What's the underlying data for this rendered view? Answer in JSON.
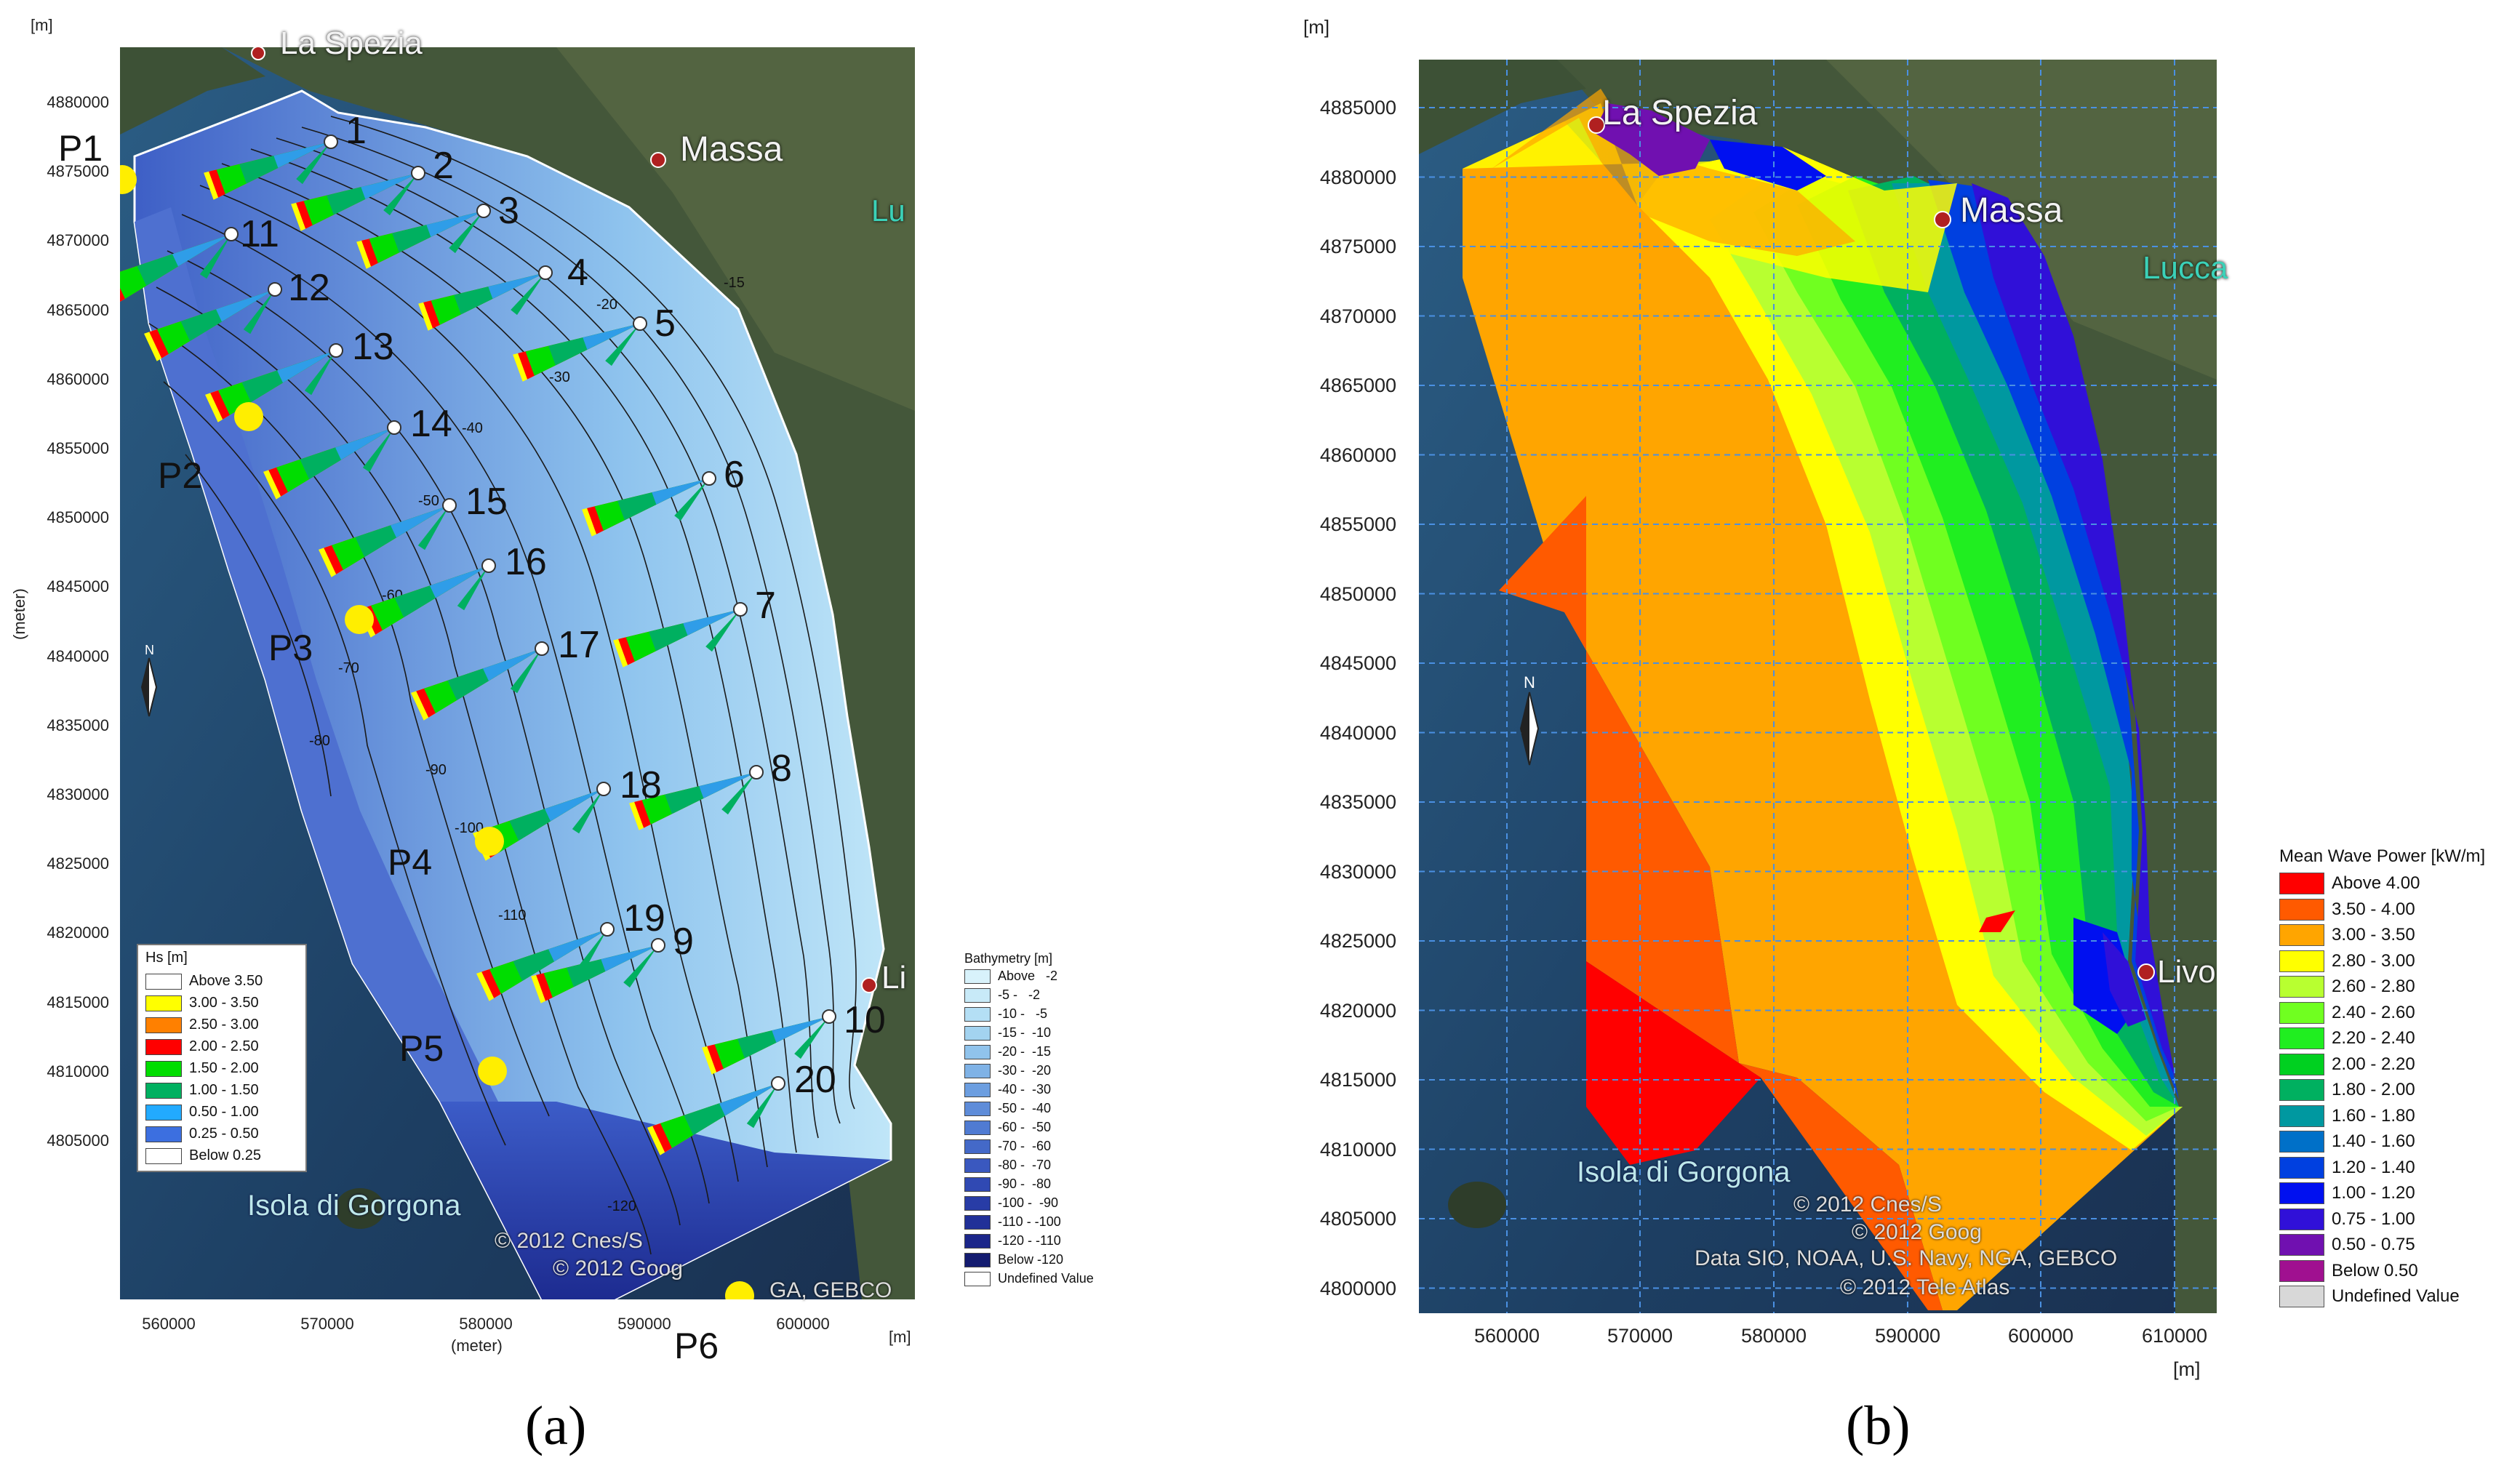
{
  "panel_a": {
    "unit_top": "[m]",
    "unit_right": "[m]",
    "ylabel": "(meter)",
    "xlabel": "(meter)",
    "yticks": [
      "4880000",
      "4875000",
      "4870000",
      "4865000",
      "4860000",
      "4855000",
      "4850000",
      "4845000",
      "4840000",
      "4835000",
      "4830000",
      "4825000",
      "4820000",
      "4815000",
      "4810000",
      "4805000"
    ],
    "xticks": [
      "560000",
      "570000",
      "580000",
      "590000",
      "600000"
    ],
    "cities": {
      "spezia": "La Spezia",
      "massa": "Massa",
      "lucca": "Lu",
      "livorno": "Li"
    },
    "gorgona": "Isola di Gorgona",
    "copyright1": "© 2012 Cnes/S",
    "copyright2": "© 2012 Goog",
    "copyright3": "GA, GEBCO",
    "point_labels": [
      "1",
      "2",
      "3",
      "4",
      "5",
      "6",
      "7",
      "8",
      "9",
      "10",
      "11",
      "12",
      "13",
      "14",
      "15",
      "16",
      "17",
      "18",
      "19",
      "20"
    ],
    "p_labels": [
      "P1",
      "P2",
      "P3",
      "P4",
      "P5",
      "P6"
    ],
    "hs_legend": {
      "title": "Hs [m]",
      "items": [
        {
          "label": "Above 3.50",
          "color": "#ffffff"
        },
        {
          "label": "3.00 - 3.50",
          "color": "#ffff00"
        },
        {
          "label": "2.50 - 3.00",
          "color": "#ff8000"
        },
        {
          "label": "2.00 - 2.50",
          "color": "#ff0000"
        },
        {
          "label": "1.50 - 2.00",
          "color": "#00dd00"
        },
        {
          "label": "1.00 - 1.50",
          "color": "#00b060"
        },
        {
          "label": "0.50 - 1.00",
          "color": "#22aaff"
        },
        {
          "label": "0.25 - 0.50",
          "color": "#3c6fe0"
        },
        {
          "label": "Below 0.25",
          "color": "#ffffff"
        }
      ]
    },
    "bathy_legend": {
      "title": "Bathymetry [m]",
      "items": [
        {
          "label": "Above   -2",
          "color": "#d8f2fb"
        },
        {
          "label": "-5 -   -2",
          "color": "#c8eaf8"
        },
        {
          "label": "-10 -   -5",
          "color": "#b4dff5"
        },
        {
          "label": "-15 -  -10",
          "color": "#a3d3f0"
        },
        {
          "label": "-20 -  -15",
          "color": "#90c3ec"
        },
        {
          "label": "-30 -  -20",
          "color": "#7fb2e6"
        },
        {
          "label": "-40 -  -30",
          "color": "#6c9ee0"
        },
        {
          "label": "-50 -  -40",
          "color": "#5e8cd9"
        },
        {
          "label": "-60 -  -50",
          "color": "#507bd2"
        },
        {
          "label": "-70 -  -60",
          "color": "#4469c8"
        },
        {
          "label": "-80 -  -70",
          "color": "#3a58bf"
        },
        {
          "label": "-90 -  -80",
          "color": "#3049b3"
        },
        {
          "label": "-100 -  -90",
          "color": "#283ca6"
        },
        {
          "label": "-110 - -100",
          "color": "#213098"
        },
        {
          "label": "-120 - -110",
          "color": "#1b268a"
        },
        {
          "label": "Below -120",
          "color": "#141c70"
        },
        {
          "label": "Undefined Value",
          "color": "#ffffff"
        }
      ]
    },
    "contours": [
      "-15",
      "-20",
      "-30",
      "-40",
      "-50",
      "-60",
      "-70",
      "-80",
      "-90",
      "-100",
      "-110",
      "-120"
    ]
  },
  "panel_b": {
    "unit_top": "[m]",
    "unit_bottom": "[m]",
    "yticks": [
      "4885000",
      "4880000",
      "4875000",
      "4870000",
      "4865000",
      "4860000",
      "4855000",
      "4850000",
      "4845000",
      "4840000",
      "4835000",
      "4830000",
      "4825000",
      "4820000",
      "4815000",
      "4810000",
      "4805000",
      "4800000"
    ],
    "xticks": [
      "560000",
      "570000",
      "580000",
      "590000",
      "600000",
      "610000"
    ],
    "cities": {
      "spezia": "La Spezia",
      "massa": "Massa",
      "lucca": "Lucca",
      "livorno": "Livo"
    },
    "gorgona": "Isola di Gorgona",
    "copyright1": "© 2012 Cnes/S",
    "copyright2": "© 2012 Goog",
    "copyright3": "Data SIO, NOAA, U.S. Navy, NGA, GEBCO",
    "copyright4": "© 2012 Tele Atlas",
    "legend": {
      "title": "Mean Wave Power [kW/m]",
      "items": [
        {
          "label": "Above 4.00",
          "color": "#ff0000"
        },
        {
          "label": "3.50 - 4.00",
          "color": "#ff5a00"
        },
        {
          "label": "3.00 - 3.50",
          "color": "#ffa500"
        },
        {
          "label": "2.80 - 3.00",
          "color": "#ffff00"
        },
        {
          "label": "2.60 - 2.80",
          "color": "#b8ff30"
        },
        {
          "label": "2.40 - 2.60",
          "color": "#70ff20"
        },
        {
          "label": "2.20 - 2.40",
          "color": "#20ee20"
        },
        {
          "label": "2.00 - 2.20",
          "color": "#00d020"
        },
        {
          "label": "1.80 - 2.00",
          "color": "#00b060"
        },
        {
          "label": "1.60 - 1.80",
          "color": "#0098a0"
        },
        {
          "label": "1.40 - 1.60",
          "color": "#0070c8"
        },
        {
          "label": "1.20 - 1.40",
          "color": "#0040e0"
        },
        {
          "label": "1.00 - 1.20",
          "color": "#0010f0"
        },
        {
          "label": "0.75 - 1.00",
          "color": "#3010d8"
        },
        {
          "label": "0.50 - 0.75",
          "color": "#7010b0"
        },
        {
          "label": "Below 0.50",
          "color": "#a01090"
        },
        {
          "label": "Undefined Value",
          "color": "#d8d8d8"
        }
      ]
    }
  },
  "captions": {
    "a": "(a)",
    "b": "(b)"
  }
}
